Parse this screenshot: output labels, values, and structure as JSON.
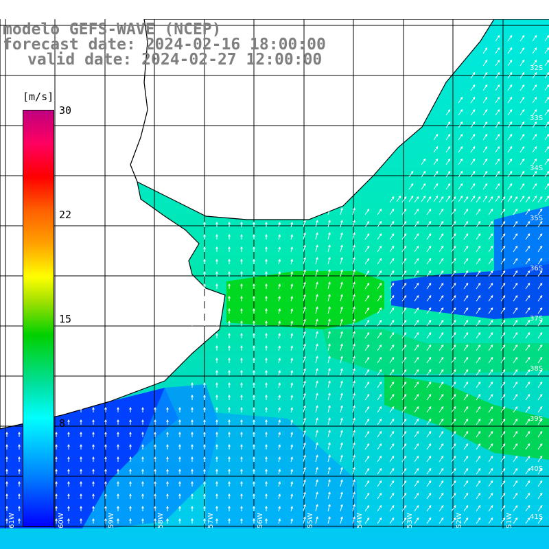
{
  "header": {
    "line1": "modelo GEFS-WAVE (NCEP)",
    "line2": "forecast date: 2024-02-16 18:00:00",
    "line3": "valid date: 2024-02-27 12:00:00"
  },
  "colorbar": {
    "unit": "[m/s]",
    "ticks": [
      "30",
      "22",
      "15",
      "8"
    ],
    "colors": [
      "#0000ff",
      "#0080ff",
      "#00ffff",
      "#00d000",
      "#ffff00",
      "#ff0000",
      "#c0007f"
    ]
  },
  "map": {
    "lat_labels": [
      "32S",
      "33S",
      "34S",
      "35S",
      "36S",
      "37S",
      "38S",
      "39S",
      "40S",
      "41S"
    ],
    "lon_labels": [
      "61W",
      "60W",
      "59W",
      "58W",
      "57W",
      "56W",
      "55W",
      "54W",
      "53W",
      "52W",
      "51W"
    ],
    "colors": {
      "land": "#ffffff",
      "grid": "#000000",
      "coast": "#000000",
      "arrow": "#ffffff"
    }
  }
}
